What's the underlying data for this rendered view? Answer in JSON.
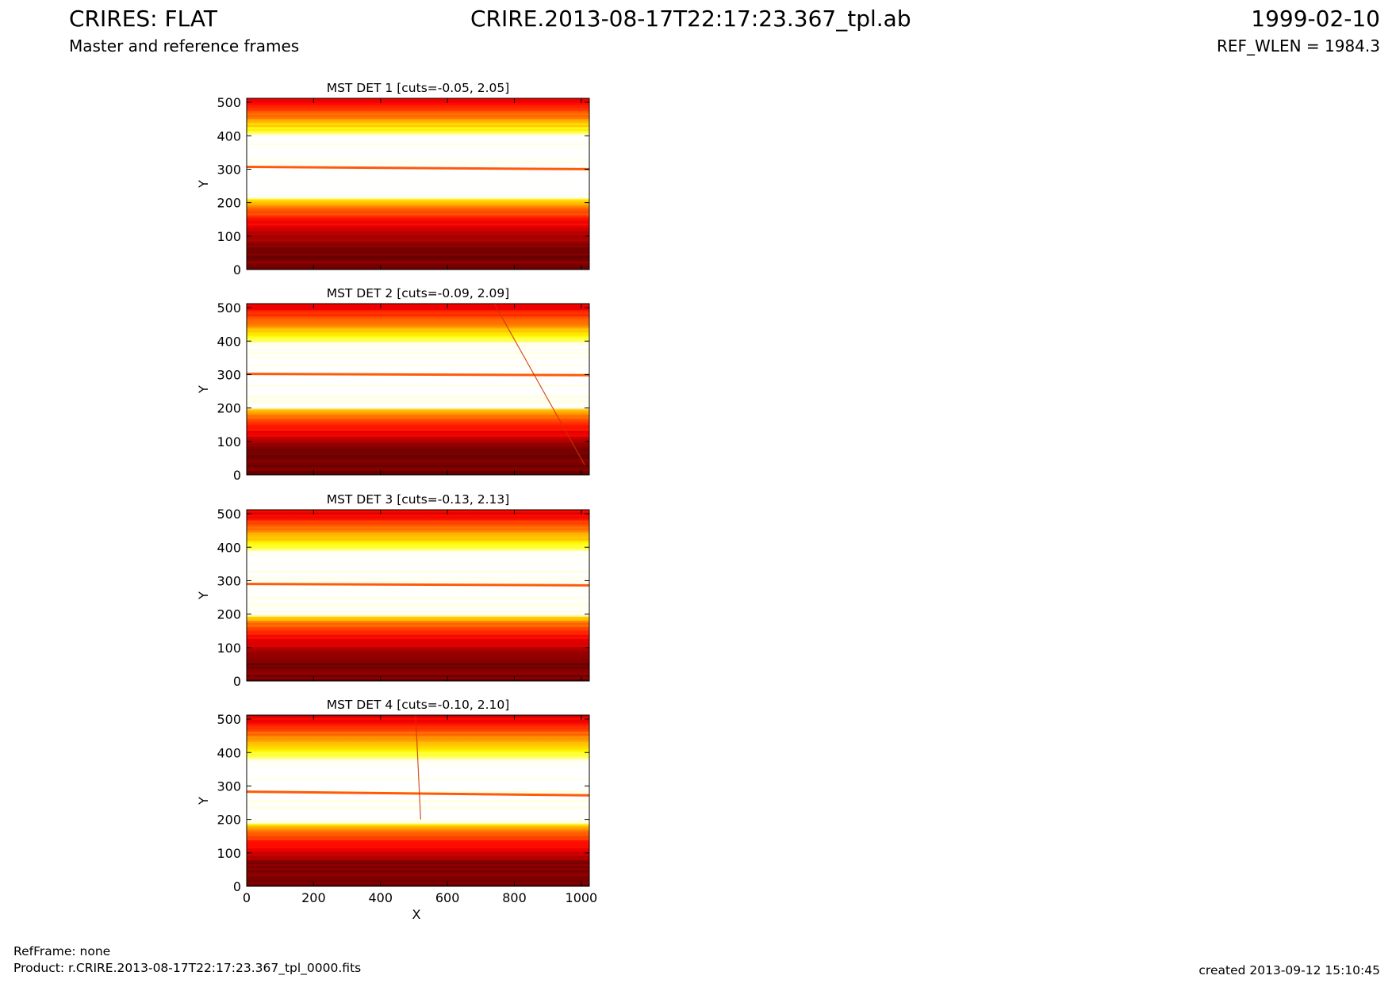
{
  "header": {
    "title": "CRIRES: FLAT",
    "subtitle": "Master and reference frames",
    "file": "CRIRE.2013-08-17T22:17:23.367_tpl.ab",
    "date": "1999-02-10",
    "ref_wlen": "REF_WLEN = 1984.3"
  },
  "footer": {
    "refframe": "RefFrame: none",
    "product": "Product: r.CRIRE.2013-08-17T22:17:23.367_tpl_0000.fits",
    "created": "created 2013-09-12 15:10:45"
  },
  "colors": {
    "colormap": "hot",
    "trace_line": "#ff5a0a"
  },
  "chart_data": [
    {
      "type": "heatmap",
      "title": "MST DET 1 [cuts=-0.05, 2.05]",
      "xlabel": "",
      "ylabel": "Y",
      "xlim": [
        0,
        1024
      ],
      "ylim": [
        0,
        512
      ],
      "xticks": [],
      "yticks": [
        0,
        100,
        200,
        300,
        400,
        500
      ],
      "trace_y": [
        307,
        300
      ],
      "bright_band": [
        210,
        400
      ],
      "cosmic_streak": null
    },
    {
      "type": "heatmap",
      "title": "MST DET 2 [cuts=-0.09, 2.09]",
      "xlabel": "",
      "ylabel": "Y",
      "xlim": [
        0,
        1024
      ],
      "ylim": [
        0,
        512
      ],
      "xticks": [],
      "yticks": [
        0,
        100,
        200,
        300,
        400,
        500
      ],
      "trace_y": [
        302,
        298
      ],
      "bright_band": [
        200,
        395
      ],
      "cosmic_streak": [
        [
          740,
          512
        ],
        [
          1010,
          30
        ]
      ]
    },
    {
      "type": "heatmap",
      "title": "MST DET 3 [cuts=-0.13, 2.13]",
      "xlabel": "",
      "ylabel": "Y",
      "xlim": [
        0,
        1024
      ],
      "ylim": [
        0,
        512
      ],
      "xticks": [],
      "yticks": [
        0,
        100,
        200,
        300,
        400,
        500
      ],
      "trace_y": [
        290,
        286
      ],
      "bright_band": [
        195,
        390
      ],
      "cosmic_streak": null
    },
    {
      "type": "heatmap",
      "title": "MST DET 4 [cuts=-0.10, 2.10]",
      "xlabel": "X",
      "ylabel": "Y",
      "xlim": [
        0,
        1024
      ],
      "ylim": [
        0,
        512
      ],
      "xticks": [
        0,
        200,
        400,
        600,
        800,
        1000
      ],
      "yticks": [
        0,
        100,
        200,
        300,
        400,
        500
      ],
      "trace_y": [
        283,
        272
      ],
      "bright_band": [
        185,
        380
      ],
      "cosmic_streak": [
        [
          505,
          512
        ],
        [
          520,
          200
        ]
      ]
    }
  ]
}
